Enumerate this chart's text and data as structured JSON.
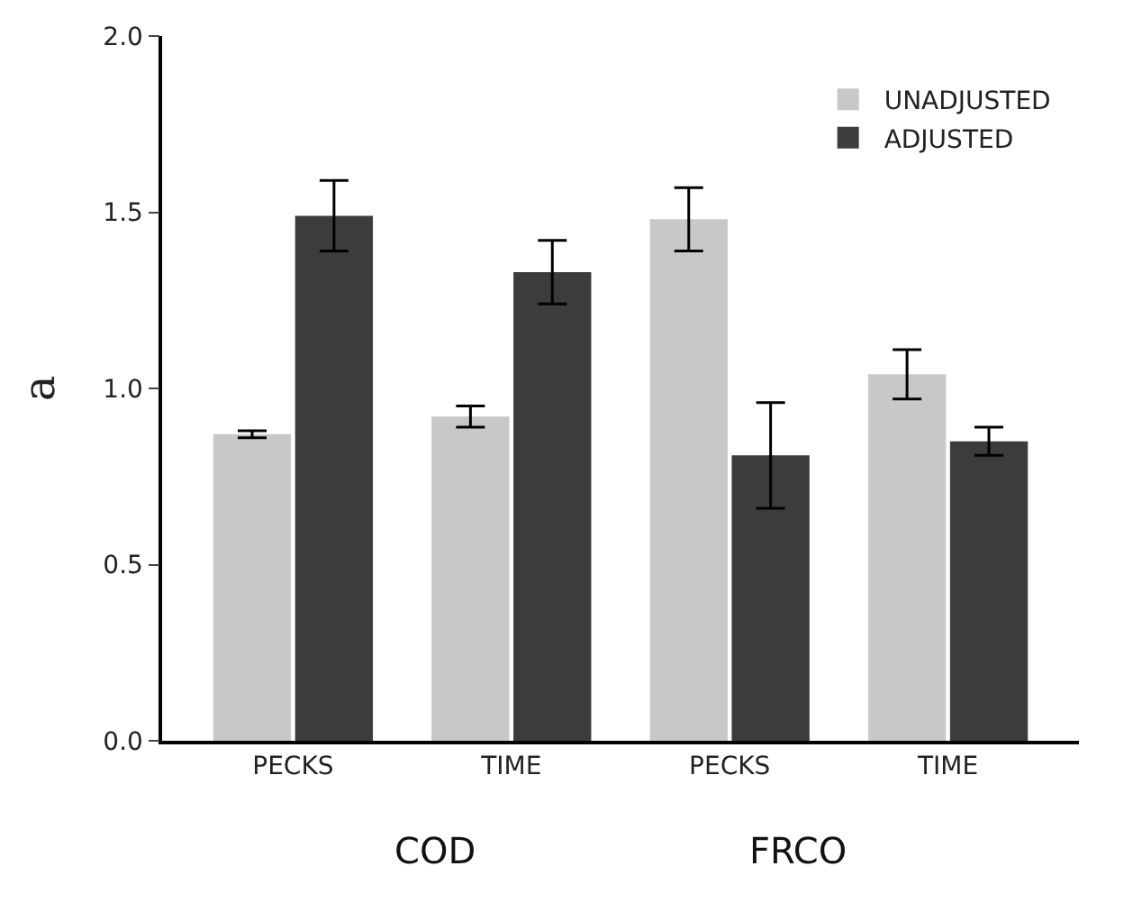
{
  "chart_data": {
    "type": "bar",
    "ylabel": "a",
    "categories": [
      "PECKS",
      "TIME",
      "PECKS",
      "TIME"
    ],
    "series": [
      {
        "name": "UNADJUSTED",
        "color": "#c8c8c8",
        "values": [
          0.87,
          0.92,
          1.48,
          1.04
        ],
        "errors": [
          0.01,
          0.03,
          0.09,
          0.07
        ]
      },
      {
        "name": "ADJUSTED",
        "color": "#3c3c3c",
        "values": [
          1.49,
          1.33,
          0.81,
          0.85
        ],
        "errors": [
          0.1,
          0.09,
          0.15,
          0.04
        ]
      }
    ],
    "annotations": [
      "COD",
      "FRCO"
    ],
    "ylim": [
      0,
      2
    ],
    "yticks": [
      {
        "value": 0,
        "label": "0.0"
      },
      {
        "value": 0.5,
        "label": "0.5"
      },
      {
        "value": 1,
        "label": "1.0"
      },
      {
        "value": 1.5,
        "label": "1.5"
      },
      {
        "value": 2,
        "label": "2.0"
      }
    ],
    "grid": false,
    "legend": "top right"
  }
}
